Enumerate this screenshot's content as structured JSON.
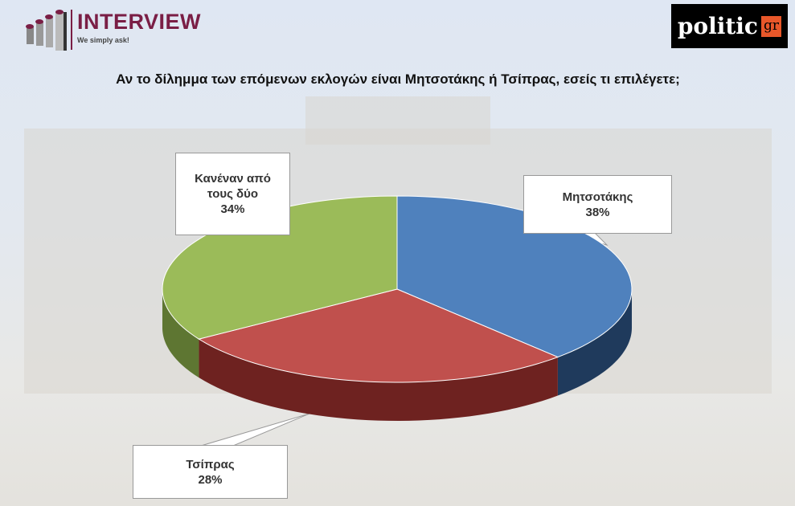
{
  "logos": {
    "interview": {
      "name": "INTERVIEW",
      "tagline": "We simply ask!"
    },
    "politic": {
      "name": "politic",
      "suffix": "gr"
    }
  },
  "chart_data": {
    "type": "pie",
    "style": "3d",
    "title": "Αν το δίλημμα των επόμενων εκλογών είναι Μητσοτάκης ή Τσίπρας, εσείς τι επιλέγετε;",
    "slices": [
      {
        "label": "Μητσοτάκης",
        "value": 38,
        "display": "38%",
        "color": "#4f81bd",
        "side_color": "#1f3a5c"
      },
      {
        "label": "Τσίπρας",
        "value": 28,
        "display": "28%",
        "color": "#c0504d",
        "side_color": "#6e2220"
      },
      {
        "label": "Κανέναν από τους δύο",
        "value": 34,
        "display": "34%",
        "color": "#9bbb59",
        "side_color": "#5e7632"
      }
    ]
  }
}
